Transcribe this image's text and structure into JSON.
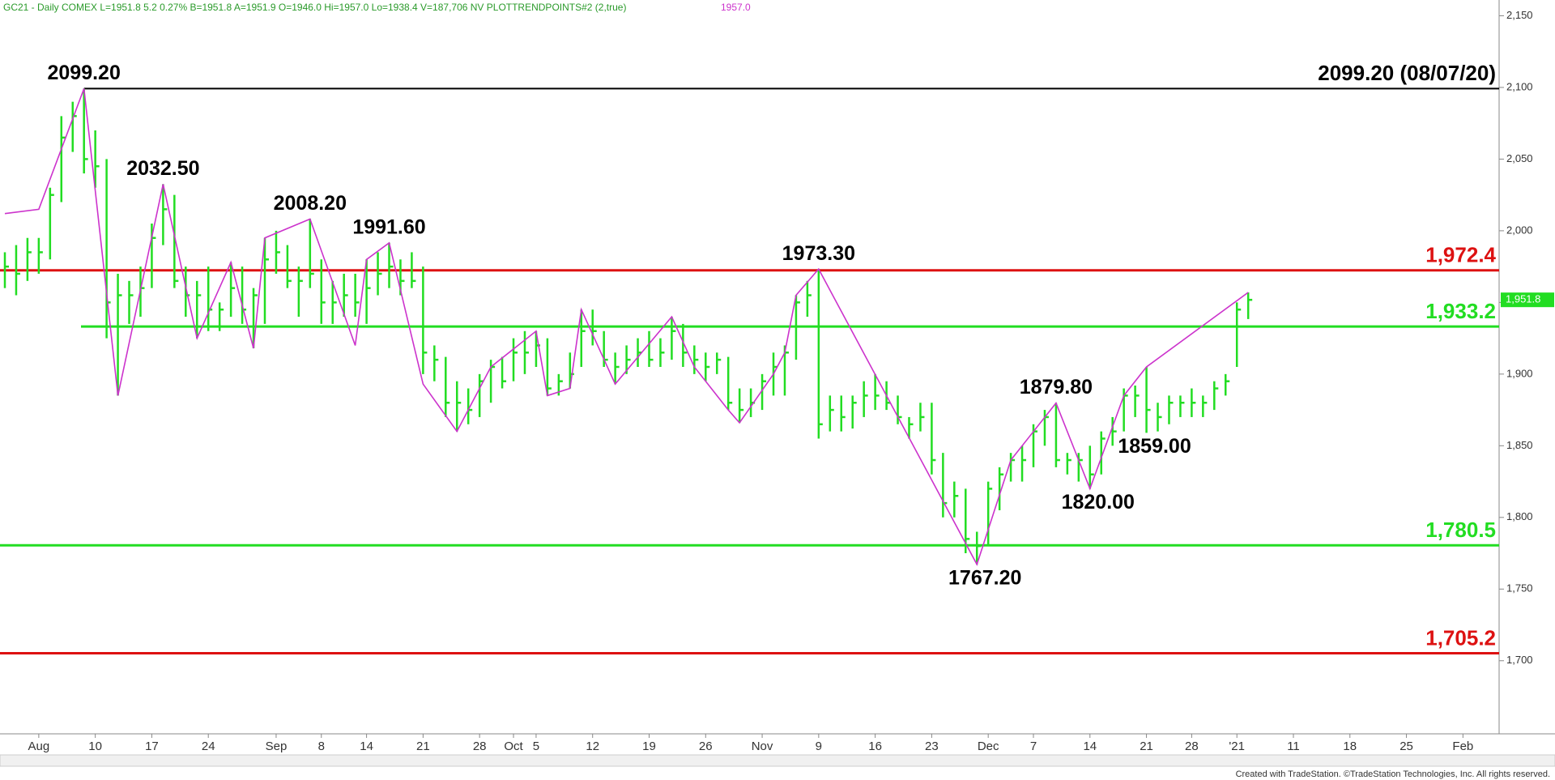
{
  "chart_data": {
    "type": "ohlc",
    "header": "GC21 - Daily  COMEX  L=1951.8  5.2  0.27%  B=1951.8  A=1951.9  O=1946.0  Hi=1957.0  Lo=1938.4  V=187,706  NV  PLOTTRENDPOINTS#2 (2,true)",
    "header_extra": "1957.0",
    "footer": "Created with TradeStation. ©TradeStation Technologies, Inc. All rights reserved.",
    "bar_color": "#22dd22",
    "trend_color": "#cc33cc",
    "ylim": [
      1649,
      2161
    ],
    "xlim": [
      -0.43,
      132.2
    ],
    "yticks": [
      {
        "value": 2150,
        "label": "2,150"
      },
      {
        "value": 2100,
        "label": "2,100"
      },
      {
        "value": 2050,
        "label": "2,050"
      },
      {
        "value": 2000,
        "label": "2,000"
      },
      {
        "value": 1950,
        "label": "1,950"
      },
      {
        "value": 1900,
        "label": "1,900"
      },
      {
        "value": 1850,
        "label": "1,850"
      },
      {
        "value": 1800,
        "label": "1,800"
      },
      {
        "value": 1750,
        "label": "1,750"
      },
      {
        "value": 1700,
        "label": "1,700"
      }
    ],
    "xticks": [
      {
        "value": 3,
        "label": "Aug"
      },
      {
        "value": 8,
        "label": "10"
      },
      {
        "value": 13,
        "label": "17"
      },
      {
        "value": 18,
        "label": "24"
      },
      {
        "value": 24,
        "label": "Sep"
      },
      {
        "value": 28,
        "label": "8"
      },
      {
        "value": 32,
        "label": "14"
      },
      {
        "value": 37,
        "label": "21"
      },
      {
        "value": 42,
        "label": "28"
      },
      {
        "value": 45,
        "label": "Oct"
      },
      {
        "value": 47,
        "label": "5"
      },
      {
        "value": 52,
        "label": "12"
      },
      {
        "value": 57,
        "label": "19"
      },
      {
        "value": 62,
        "label": "26"
      },
      {
        "value": 67,
        "label": "Nov"
      },
      {
        "value": 72,
        "label": "9"
      },
      {
        "value": 77,
        "label": "16"
      },
      {
        "value": 82,
        "label": "23"
      },
      {
        "value": 87,
        "label": "Dec"
      },
      {
        "value": 91,
        "label": "7"
      },
      {
        "value": 96,
        "label": "14"
      },
      {
        "value": 101,
        "label": "21"
      },
      {
        "value": 105,
        "label": "28"
      },
      {
        "value": 109,
        "label": "'21"
      },
      {
        "value": 114,
        "label": "11"
      },
      {
        "value": 119,
        "label": "18"
      },
      {
        "value": 124,
        "label": "25"
      },
      {
        "value": 129,
        "label": "Feb"
      }
    ],
    "high": [
      1985,
      1990,
      1995,
      1995,
      2030,
      2080,
      2090,
      2099.2,
      2070,
      2050,
      1970,
      1965,
      1975,
      2005,
      2032.5,
      2025,
      1975,
      1965,
      1975,
      1950,
      1978,
      1975,
      1960,
      1995,
      2000,
      1990,
      1975,
      2008.2,
      1980,
      1965,
      1970,
      1970,
      1980,
      1985,
      1991.6,
      1980,
      1985,
      1975,
      1920,
      1912,
      1895,
      1890,
      1900,
      1910,
      1912,
      1925,
      1930,
      1930,
      1925,
      1900,
      1915,
      1945,
      1945,
      1930,
      1915,
      1920,
      1925,
      1930,
      1925,
      1940,
      1935,
      1920,
      1915,
      1915,
      1912,
      1890,
      1890,
      1900,
      1915,
      1920,
      1955,
      1965,
      1973.3,
      1885,
      1885,
      1885,
      1895,
      1900,
      1895,
      1885,
      1870,
      1880,
      1880,
      1845,
      1825,
      1820,
      1790,
      1825,
      1835,
      1845,
      1850,
      1865,
      1875,
      1879.8,
      1845,
      1845,
      1850,
      1860,
      1870,
      1890,
      1892,
      1905,
      1880,
      1885,
      1885,
      1890,
      1885,
      1895,
      1900,
      1950,
      1957
    ],
    "low": [
      1960,
      1955,
      1965,
      1970,
      1980,
      2020,
      2055,
      2040,
      2030,
      1925,
      1885,
      1935,
      1940,
      1960,
      1990,
      1960,
      1940,
      1925,
      1930,
      1930,
      1940,
      1935,
      1918,
      1935,
      1970,
      1960,
      1940,
      1960,
      1935,
      1935,
      1940,
      1940,
      1935,
      1955,
      1960,
      1955,
      1960,
      1900,
      1895,
      1870,
      1860,
      1865,
      1870,
      1880,
      1890,
      1895,
      1900,
      1905,
      1885,
      1885,
      1890,
      1905,
      1920,
      1905,
      1893,
      1900,
      1905,
      1905,
      1905,
      1910,
      1905,
      1900,
      1895,
      1900,
      1875,
      1866,
      1870,
      1875,
      1885,
      1885,
      1910,
      1940,
      1855,
      1860,
      1860,
      1862,
      1870,
      1875,
      1875,
      1865,
      1855,
      1860,
      1830,
      1800,
      1800,
      1775,
      1767.2,
      1780,
      1805,
      1825,
      1825,
      1835,
      1850,
      1835,
      1830,
      1825,
      1820,
      1830,
      1850,
      1860,
      1870,
      1859,
      1860,
      1865,
      1870,
      1870,
      1870,
      1875,
      1885,
      1905,
      1938.4
    ],
    "close": [
      1975,
      1970,
      1985,
      1985,
      2025,
      2065,
      2080,
      2050,
      2045,
      1950,
      1955,
      1955,
      1960,
      1995,
      2015,
      1965,
      1955,
      1955,
      1945,
      1945,
      1960,
      1945,
      1955,
      1980,
      1985,
      1965,
      1965,
      1970,
      1950,
      1950,
      1955,
      1950,
      1960,
      1970,
      1975,
      1965,
      1965,
      1915,
      1910,
      1880,
      1880,
      1875,
      1895,
      1905,
      1895,
      1915,
      1915,
      1920,
      1890,
      1895,
      1900,
      1930,
      1930,
      1910,
      1905,
      1910,
      1915,
      1910,
      1915,
      1930,
      1915,
      1910,
      1905,
      1910,
      1880,
      1875,
      1880,
      1895,
      1905,
      1915,
      1950,
      1955,
      1865,
      1875,
      1870,
      1880,
      1885,
      1885,
      1880,
      1870,
      1865,
      1870,
      1840,
      1810,
      1815,
      1785,
      1780,
      1820,
      1830,
      1840,
      1840,
      1860,
      1870,
      1840,
      1840,
      1840,
      1830,
      1855,
      1860,
      1885,
      1885,
      1875,
      1870,
      1880,
      1880,
      1880,
      1880,
      1890,
      1895,
      1945,
      1951.8
    ],
    "trend_index": [
      0,
      3,
      7,
      10,
      14,
      17,
      20,
      22,
      23,
      27,
      31,
      32,
      34,
      37,
      40,
      43,
      47,
      48,
      50,
      51,
      54,
      59,
      61,
      64,
      65,
      68,
      69,
      70,
      72,
      86,
      89,
      93,
      96,
      99,
      101,
      110
    ],
    "trend_price": [
      2012,
      2015,
      2099.2,
      1885,
      2032.5,
      1925,
      1978,
      1918,
      1995,
      2008.2,
      1920,
      1980,
      1991.6,
      1893,
      1860,
      1905,
      1930,
      1885,
      1890,
      1945,
      1893,
      1940,
      1905,
      1875,
      1866,
      1900,
      1915,
      1955,
      1973.3,
      1767.2,
      1840,
      1879.8,
      1820,
      1885,
      1905,
      1957
    ],
    "pivot_labels": [
      {
        "index": 7,
        "value": 2099.2,
        "label": "2099.20"
      },
      {
        "index": 14,
        "value": 2032.5,
        "label": "2032.50"
      },
      {
        "index": 27,
        "value": 2008.2,
        "label": "2008.20"
      },
      {
        "index": 34,
        "value": 1991.6,
        "label": "1991.60"
      },
      {
        "index": 72,
        "value": 1973.3,
        "label": "1973.30"
      },
      {
        "index": 86,
        "value": 1767.2,
        "label": "1767.20"
      },
      {
        "index": 93,
        "value": 1879.8,
        "label": "1879.80"
      },
      {
        "index": 96,
        "value": 1820,
        "label": "1820.00"
      },
      {
        "index": 101,
        "value": 1859,
        "label": "1859.00"
      }
    ],
    "levels": [
      {
        "value": 2099.2,
        "label": "2099.20 (08/07/20)",
        "color": "#000000"
      },
      {
        "value": 1972.4,
        "label": "1,972.4",
        "color": "#dd1111"
      },
      {
        "value": 1933.2,
        "label": "1,933.2",
        "color": "#22dd22"
      },
      {
        "value": 1780.5,
        "label": "1,780.5",
        "color": "#22dd22"
      },
      {
        "value": 1705.2,
        "label": "1,705.2",
        "color": "#dd1111"
      }
    ],
    "last_price": {
      "value": 1951.8,
      "label": "1,951.8"
    }
  }
}
